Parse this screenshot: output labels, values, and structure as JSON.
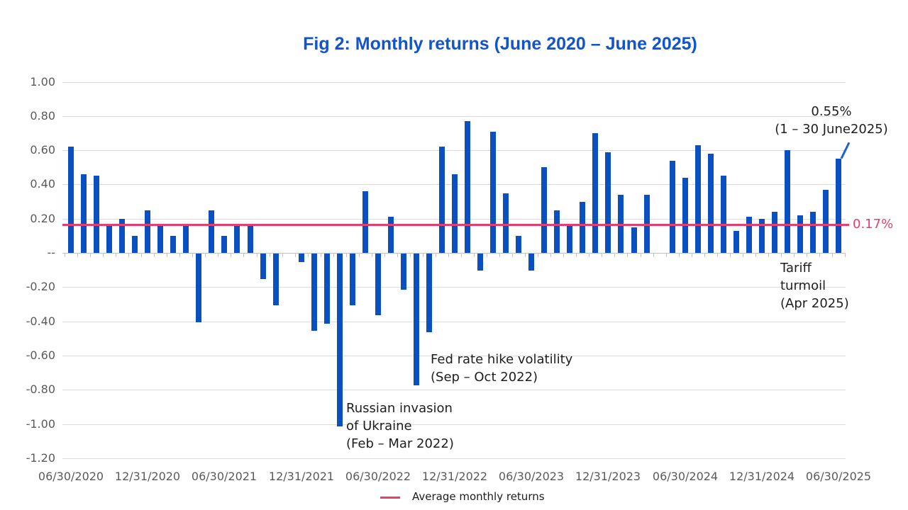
{
  "title": "Fig 2: Monthly returns (June 2020 – June 2025)",
  "colors": {
    "title": "#1254cb",
    "bar": "#0b50c0",
    "average_line": "#e73d6f",
    "callout_slash": "#1f5ed6",
    "grid": "#dcdcdc",
    "axis_text": "#5a5a5a",
    "annotation_text": "#1e1e1e"
  },
  "chart_data": {
    "type": "bar",
    "title": "Fig 2: Monthly returns (June 2020 – June 2025)",
    "xlabel": "",
    "ylabel": "",
    "ylim": [
      -1.2,
      1.0
    ],
    "grid": "horizontal",
    "x": [
      "Jun 2020",
      "Jul 2020",
      "Aug 2020",
      "Sep 2020",
      "Oct 2020",
      "Nov 2020",
      "Dec 2020",
      "Jan 2021",
      "Feb 2021",
      "Mar 2021",
      "Apr 2021",
      "May 2021",
      "Jun 2021",
      "Jul 2021",
      "Aug 2021",
      "Sep 2021",
      "Oct 2021",
      "Nov 2021",
      "Dec 2021",
      "Jan 2022",
      "Feb 2022",
      "Mar 2022",
      "Apr 2022",
      "May 2022",
      "Jun 2022",
      "Jul 2022",
      "Aug 2022",
      "Sep 2022",
      "Oct 2022",
      "Nov 2022",
      "Dec 2022",
      "Jan 2023",
      "Feb 2023",
      "Mar 2023",
      "Apr 2023",
      "May 2023",
      "Jun 2023",
      "Jul 2023",
      "Aug 2023",
      "Sep 2023",
      "Oct 2023",
      "Nov 2023",
      "Dec 2023",
      "Jan 2024",
      "Feb 2024",
      "Mar 2024",
      "Apr 2024",
      "May 2024",
      "Jun 2024",
      "Jul 2024",
      "Aug 2024",
      "Sep 2024",
      "Oct 2024",
      "Nov 2024",
      "Dec 2024",
      "Jan 2025",
      "Feb 2025",
      "Mar 2025",
      "Apr 2025",
      "May 2025",
      "Jun 2025"
    ],
    "values": [
      0.62,
      0.46,
      0.45,
      0.16,
      0.2,
      0.1,
      0.25,
      0.16,
      0.1,
      0.16,
      -0.4,
      0.25,
      0.1,
      0.16,
      0.16,
      -0.15,
      -0.3,
      0,
      -0.05,
      -0.45,
      -0.41,
      -1.01,
      -0.3,
      0.36,
      -0.36,
      0.21,
      -0.21,
      -0.77,
      -0.46,
      0.62,
      0.46,
      0.77,
      -0.1,
      0.71,
      0.35,
      0.1,
      -0.1,
      0.5,
      0.25,
      0.16,
      0.3,
      0.7,
      0.59,
      0.34,
      0.15,
      0.34,
      0,
      0.54,
      0.44,
      0.63,
      0.58,
      0.45,
      0.13,
      0.21,
      0.2,
      0.24,
      0.6,
      0.22,
      0.24,
      0.37,
      0.55
    ],
    "y_ticks": [
      {
        "value": 1.0,
        "label": "1.00"
      },
      {
        "value": 0.8,
        "label": "0.80"
      },
      {
        "value": 0.6,
        "label": "0.60"
      },
      {
        "value": 0.4,
        "label": "0.40"
      },
      {
        "value": 0.2,
        "label": "0.20"
      },
      {
        "value": 0.0,
        "label": "--"
      },
      {
        "value": -0.2,
        "label": "-0.20"
      },
      {
        "value": -0.4,
        "label": "-0.40"
      },
      {
        "value": -0.6,
        "label": "-0.60"
      },
      {
        "value": -0.8,
        "label": "-0.80"
      },
      {
        "value": -1.0,
        "label": "-1.00"
      },
      {
        "value": -1.2,
        "label": "-1.20"
      }
    ],
    "x_ticks": [
      "06/30/2020",
      "12/31/2020",
      "06/30/2021",
      "12/31/2021",
      "06/30/2022",
      "12/31/2022",
      "06/30/2023",
      "12/31/2023",
      "06/30/2024",
      "12/31/2024",
      "06/30/2025"
    ],
    "average_line": {
      "value": 0.17,
      "label": "0.17%",
      "legend": "Average monthly returns",
      "legend_position": "bottom-center"
    },
    "annotations": [
      {
        "id": "russian-invasion",
        "lines": [
          "Russian invasion",
          "of Ukraine",
          "(Feb – Mar 2022)"
        ],
        "x": 488,
        "y": 564,
        "align": "left"
      },
      {
        "id": "fed-rate-hike",
        "lines": [
          "Fed rate hike volatility",
          "(Sep – Oct 2022)"
        ],
        "x": 607,
        "y": 495,
        "align": "left"
      },
      {
        "id": "tariff-turmoil",
        "lines": [
          "Tariff",
          "turmoil",
          "(Apr 2025)"
        ],
        "x": 1100,
        "y": 366,
        "align": "left"
      },
      {
        "id": "june-2025-return",
        "lines": [
          "0.55%",
          "(1 – 30 June2025)"
        ],
        "x": 1172,
        "y": 145,
        "align": "center"
      }
    ]
  }
}
